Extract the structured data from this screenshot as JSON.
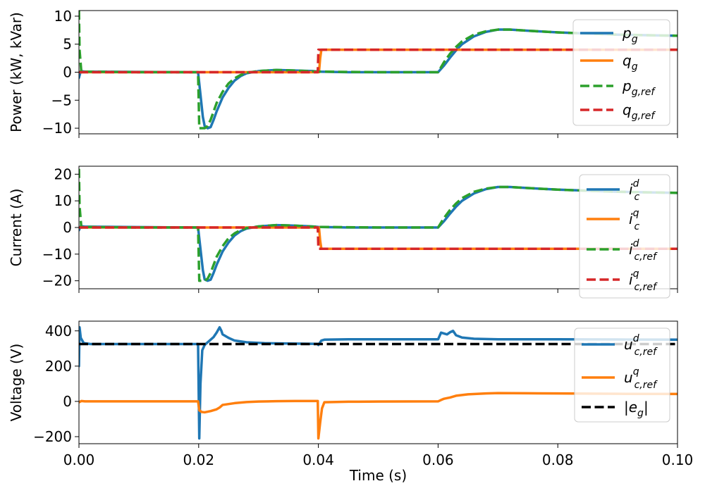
{
  "chart_data": [
    {
      "type": "line",
      "ylabel": "Power (kW, kVar)",
      "xlim": [
        0,
        0.1
      ],
      "ylim": [
        -11,
        11
      ],
      "yticks": [
        10,
        5,
        0,
        -5,
        -10
      ],
      "ytick_labels": [
        "10",
        "5",
        "0",
        "−5",
        "−10"
      ],
      "legend_position": "right",
      "series": [
        {
          "name": "p_g",
          "base": "p",
          "sub": "g",
          "sup": "",
          "color": "#1f77b4",
          "style": "solid",
          "x": [
            0,
            0.0003,
            0.001,
            0.0199,
            0.02,
            0.0203,
            0.0207,
            0.021,
            0.0215,
            0.022,
            0.0225,
            0.023,
            0.024,
            0.025,
            0.026,
            0.027,
            0.028,
            0.03,
            0.033,
            0.036,
            0.039,
            0.04,
            0.045,
            0.05,
            0.055,
            0.06,
            0.061,
            0.062,
            0.063,
            0.064,
            0.066,
            0.068,
            0.07,
            0.072,
            0.075,
            0.08,
            0.085,
            0.09,
            0.095,
            0.1
          ],
          "y": [
            -1,
            0.2,
            0.1,
            0,
            -1,
            -4,
            -8,
            -9.6,
            -10,
            -9.8,
            -8.5,
            -7,
            -4.5,
            -2.8,
            -1.5,
            -0.7,
            -0.2,
            0.2,
            0.4,
            0.3,
            0.2,
            0.1,
            0,
            0,
            0,
            0,
            1.2,
            2.6,
            3.9,
            5,
            6.4,
            7.2,
            7.6,
            7.6,
            7.4,
            7.1,
            6.9,
            6.7,
            6.6,
            6.5
          ]
        },
        {
          "name": "q_g",
          "base": "q",
          "sub": "g",
          "sup": "",
          "color": "#ff7f0e",
          "style": "solid",
          "x": [
            0,
            0.0401,
            0.0403,
            0.0405,
            0.1
          ],
          "y": [
            0,
            0,
            2.5,
            4,
            4
          ]
        },
        {
          "name": "p_g,ref",
          "base": "p",
          "sub": "g,ref",
          "sup": "",
          "color": "#2ca02c",
          "style": "dashed",
          "x": [
            0,
            0.0001,
            0.0004,
            0.001,
            0.01,
            0.0199,
            0.0201,
            0.021,
            0.0215,
            0.022,
            0.023,
            0.024,
            0.025,
            0.026,
            0.027,
            0.028,
            0.03,
            0.033,
            0.036,
            0.04,
            0.05,
            0.06,
            0.061,
            0.062,
            0.063,
            0.064,
            0.066,
            0.068,
            0.07,
            0.072,
            0.075,
            0.08,
            0.085,
            0.09,
            0.095,
            0.1
          ],
          "y": [
            11,
            4,
            0,
            0.1,
            0,
            0,
            -10,
            -10,
            -9.6,
            -8.5,
            -5.5,
            -3.5,
            -2,
            -1.1,
            -0.5,
            -0.1,
            0.2,
            0.4,
            0.3,
            0.1,
            0,
            0,
            1.8,
            3.3,
            4.5,
            5.5,
            6.7,
            7.3,
            7.6,
            7.6,
            7.4,
            7.1,
            6.9,
            6.7,
            6.6,
            6.5
          ]
        },
        {
          "name": "q_g,ref",
          "base": "q",
          "sub": "g,ref",
          "sup": "",
          "color": "#d62728",
          "style": "dashed",
          "x": [
            0,
            0.0399,
            0.04,
            0.1
          ],
          "y": [
            0,
            0,
            4,
            4
          ]
        }
      ]
    },
    {
      "type": "line",
      "ylabel": "Current (A)",
      "xlim": [
        0,
        0.1
      ],
      "ylim": [
        -23,
        23
      ],
      "yticks": [
        20,
        10,
        0,
        -10,
        -20
      ],
      "ytick_labels": [
        "20",
        "10",
        "0",
        "−10",
        "−20"
      ],
      "legend_position": "right",
      "series": [
        {
          "name": "i_c^d",
          "base": "i",
          "sub": "c",
          "sup": "d",
          "color": "#1f77b4",
          "style": "solid",
          "x": [
            0,
            0.0003,
            0.001,
            0.0199,
            0.02,
            0.0203,
            0.0207,
            0.021,
            0.0215,
            0.022,
            0.0225,
            0.023,
            0.024,
            0.025,
            0.026,
            0.027,
            0.028,
            0.03,
            0.033,
            0.036,
            0.039,
            0.04,
            0.045,
            0.05,
            0.055,
            0.06,
            0.061,
            0.062,
            0.063,
            0.064,
            0.066,
            0.068,
            0.07,
            0.072,
            0.075,
            0.08,
            0.085,
            0.09,
            0.095,
            0.1
          ],
          "y": [
            -1,
            0.5,
            0.3,
            0,
            -2,
            -8,
            -16,
            -19.5,
            -20,
            -19.6,
            -17,
            -14,
            -9,
            -5.6,
            -3,
            -1.4,
            -0.4,
            0.4,
            0.9,
            0.7,
            0.4,
            0.2,
            0,
            0,
            0,
            0,
            2.4,
            5.2,
            7.8,
            10,
            12.8,
            14.4,
            15.2,
            15.2,
            14.8,
            14.2,
            13.8,
            13.4,
            13.2,
            13
          ]
        },
        {
          "name": "i_c^q",
          "base": "i",
          "sub": "c",
          "sup": "q",
          "color": "#ff7f0e",
          "style": "solid",
          "x": [
            0,
            0.0401,
            0.0403,
            0.0405,
            0.1
          ],
          "y": [
            0,
            0,
            -5,
            -8,
            -8
          ]
        },
        {
          "name": "i_c,ref^d",
          "base": "i",
          "sub": "c,ref",
          "sup": "d",
          "color": "#2ca02c",
          "style": "dashed",
          "x": [
            0,
            0.0001,
            0.0004,
            0.001,
            0.01,
            0.0199,
            0.0201,
            0.021,
            0.0215,
            0.022,
            0.023,
            0.024,
            0.025,
            0.026,
            0.027,
            0.028,
            0.03,
            0.033,
            0.036,
            0.04,
            0.05,
            0.06,
            0.061,
            0.062,
            0.063,
            0.064,
            0.066,
            0.068,
            0.07,
            0.072,
            0.075,
            0.08,
            0.085,
            0.09,
            0.095,
            0.1
          ],
          "y": [
            22,
            8,
            0,
            0.2,
            0,
            0,
            -20,
            -20,
            -19.2,
            -17,
            -11,
            -7,
            -4,
            -2.2,
            -1,
            -0.2,
            0.4,
            0.9,
            0.7,
            0.2,
            0,
            0,
            3.6,
            6.6,
            9,
            11,
            13.4,
            14.6,
            15.2,
            15.2,
            14.8,
            14.2,
            13.8,
            13.4,
            13.2,
            13
          ]
        },
        {
          "name": "i_c,ref^q",
          "base": "i",
          "sub": "c,ref",
          "sup": "q",
          "color": "#d62728",
          "style": "dashed",
          "x": [
            0,
            0.0399,
            0.04,
            0.1
          ],
          "y": [
            0,
            0,
            -8,
            -8
          ]
        }
      ]
    },
    {
      "type": "line",
      "ylabel": "Voltage (V)",
      "xlabel": "Time (s)",
      "xlim": [
        0,
        0.1
      ],
      "ylim": [
        -240,
        455
      ],
      "yticks": [
        400,
        200,
        0,
        -200
      ],
      "ytick_labels": [
        "400",
        "200",
        "0",
        "−200"
      ],
      "xticks": [
        0,
        0.02,
        0.04,
        0.06,
        0.08,
        0.1
      ],
      "xtick_labels": [
        "0.00",
        "0.02",
        "0.04",
        "0.06",
        "0.08",
        "0.10"
      ],
      "legend_position": "right",
      "series": [
        {
          "name": "u_c,ref^d",
          "base": "u",
          "sub": "c,ref",
          "sup": "d",
          "color": "#1f77b4",
          "style": "solid",
          "x": [
            0,
            0.0001,
            0.0003,
            0.0008,
            0.002,
            0.01,
            0.0199,
            0.0201,
            0.0203,
            0.0206,
            0.021,
            0.022,
            0.0225,
            0.023,
            0.0235,
            0.0238,
            0.024,
            0.025,
            0.026,
            0.028,
            0.031,
            0.035,
            0.0399,
            0.04,
            0.0405,
            0.041,
            0.045,
            0.05,
            0.055,
            0.06,
            0.0605,
            0.061,
            0.0615,
            0.062,
            0.0625,
            0.063,
            0.064,
            0.066,
            0.07,
            0.08,
            0.09,
            0.1
          ],
          "y": [
            200,
            420,
            360,
            330,
            325,
            325,
            325,
            -210,
            100,
            290,
            320,
            350,
            365,
            390,
            420,
            400,
            380,
            360,
            345,
            335,
            330,
            328,
            326,
            320,
            345,
            350,
            352,
            352,
            352,
            352,
            390,
            385,
            380,
            392,
            400,
            375,
            362,
            355,
            352,
            352,
            351,
            350
          ]
        },
        {
          "name": "u_c,ref^q",
          "base": "u",
          "sub": "c,ref",
          "sup": "q",
          "color": "#ff7f0e",
          "style": "solid",
          "x": [
            0,
            0.0004,
            0.001,
            0.0199,
            0.0201,
            0.0205,
            0.021,
            0.022,
            0.023,
            0.0235,
            0.024,
            0.026,
            0.028,
            0.03,
            0.033,
            0.036,
            0.0399,
            0.04,
            0.0403,
            0.0406,
            0.041,
            0.045,
            0.05,
            0.06,
            0.0605,
            0.061,
            0.062,
            0.063,
            0.065,
            0.068,
            0.07,
            0.075,
            0.08,
            0.09,
            0.1
          ],
          "y": [
            -5,
            2,
            0,
            0,
            -50,
            -60,
            -62,
            -55,
            -45,
            -35,
            -20,
            -10,
            -4,
            -1,
            1,
            2,
            2,
            -210,
            -120,
            -40,
            -5,
            -2,
            -1,
            0,
            8,
            15,
            22,
            32,
            40,
            45,
            47,
            46,
            45,
            43,
            42
          ]
        },
        {
          "name": "|e_g|",
          "base": "|e",
          "sub": "g",
          "sup": "",
          "tail": "|",
          "color": "#000000",
          "style": "dashed",
          "x": [
            0,
            0.1
          ],
          "y": [
            325,
            325
          ]
        }
      ]
    }
  ]
}
